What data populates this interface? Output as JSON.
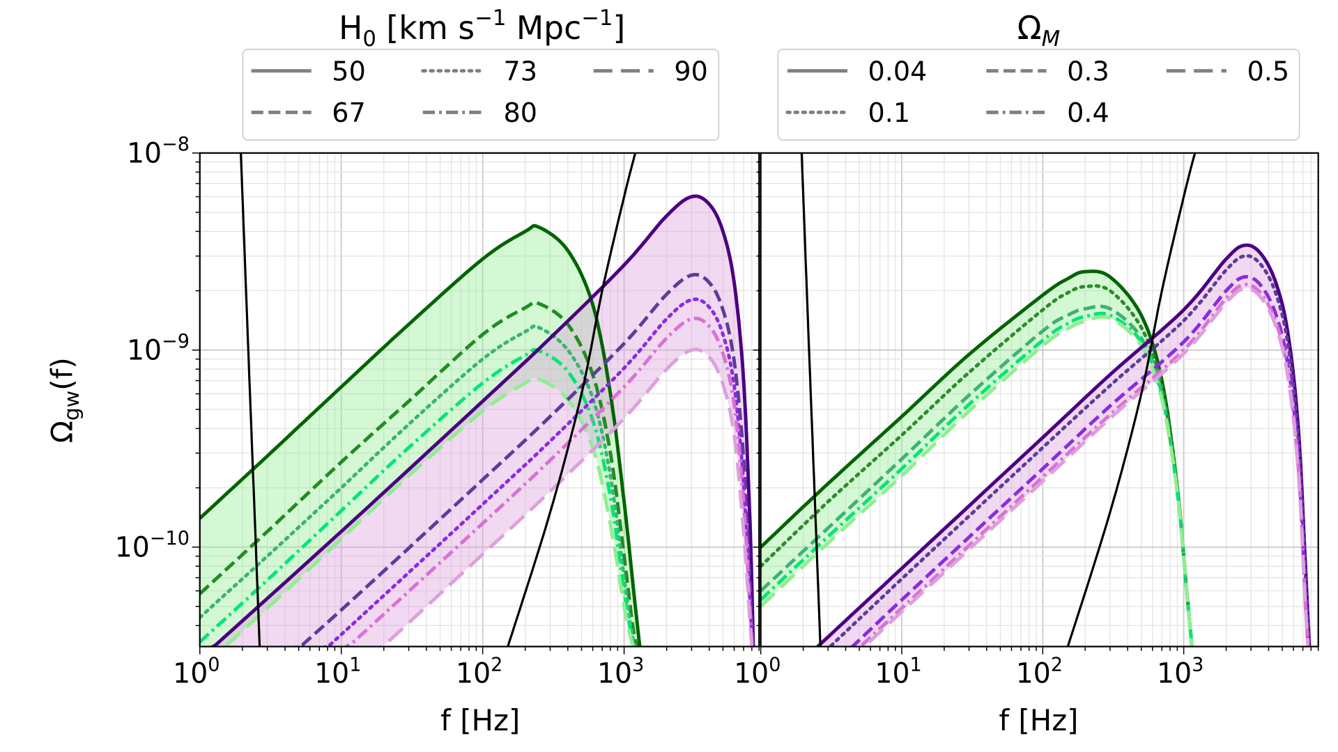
{
  "chart_data": [
    {
      "type": "line",
      "legend_title": {
        "main": "H",
        "sub": "0",
        "rest1": " [km s",
        "sup1": "−1",
        "rest2": " Mpc",
        "sup2": "−1",
        "rest3": "]"
      },
      "xlabel": "f [Hz]",
      "ylabel": {
        "main": "Ω",
        "sub": "gw",
        "rest": "(f)"
      },
      "xscale": "log",
      "yscale": "log",
      "xlim": [
        1,
        9000
      ],
      "ylim": [
        3.13e-11,
        1e-08
      ],
      "grid": true,
      "legend_placement": "above",
      "xticks": [
        {
          "base": "10",
          "exp": "0",
          "v": 1
        },
        {
          "base": "10",
          "exp": "1",
          "v": 10
        },
        {
          "base": "10",
          "exp": "2",
          "v": 100
        },
        {
          "base": "10",
          "exp": "3",
          "v": 1000
        }
      ],
      "yticks": [
        {
          "base": "10",
          "exp": "−8",
          "v": 1e-08
        },
        {
          "base": "10",
          "exp": "−9",
          "v": 1e-09
        },
        {
          "base": "10",
          "exp": "−10",
          "v": 1e-10
        }
      ],
      "legend": [
        {
          "label": "50",
          "style": "solid"
        },
        {
          "label": "67",
          "style": "dashed"
        },
        {
          "label": "73",
          "style": "dotted"
        },
        {
          "label": "80",
          "style": "dashdot"
        },
        {
          "label": "90",
          "style": "longdash"
        }
      ],
      "fills": [
        {
          "between": [
            "g50",
            "g90"
          ],
          "color": "#90ee90"
        },
        {
          "between": [
            "p50",
            "p90"
          ],
          "color": "#dda0dd"
        }
      ],
      "series": [
        {
          "id": "g50",
          "color": "#006400",
          "style": "solid",
          "f": [
            1,
            3,
            10,
            30,
            100,
            200,
            250,
            400,
            600,
            800,
            1000,
            1200,
            1300
          ],
          "omega": [
            1.4e-10,
            2.9e-10,
            6.5e-10,
            1.35e-09,
            2.9e-09,
            4e-09,
            4.2e-09,
            3.2e-09,
            1.7e-09,
            6e-10,
            1.7e-10,
            5e-11,
            3e-11
          ]
        },
        {
          "id": "g67",
          "color": "#228b22",
          "style": "dashed",
          "f": [
            1,
            3,
            10,
            30,
            100,
            200,
            250,
            400,
            600,
            800,
            1000,
            1150,
            1250
          ],
          "omega": [
            5.8e-11,
            1.2e-10,
            2.7e-10,
            5.5e-10,
            1.2e-09,
            1.64e-09,
            1.72e-09,
            1.35e-09,
            7.5e-10,
            3e-10,
            9e-11,
            4e-11,
            3e-11
          ]
        },
        {
          "id": "g73",
          "color": "#3cb371",
          "style": "dotted",
          "f": [
            1,
            3,
            10,
            30,
            100,
            200,
            250,
            400,
            600,
            800,
            1000,
            1150,
            1250
          ],
          "omega": [
            4.4e-11,
            9e-11,
            2e-10,
            4.2e-10,
            9e-10,
            1.24e-09,
            1.3e-09,
            1e-09,
            5.7e-10,
            2.3e-10,
            7e-11,
            3.5e-11,
            3e-11
          ]
        },
        {
          "id": "g80",
          "color": "#00e676",
          "style": "dashdot",
          "f": [
            1,
            3,
            10,
            30,
            100,
            200,
            250,
            400,
            600,
            800,
            1000,
            1150,
            1250
          ],
          "omega": [
            3.3e-11,
            6.8e-11,
            1.53e-10,
            3.2e-10,
            6.8e-10,
            9.4e-10,
            9.9e-10,
            7.8e-10,
            4.4e-10,
            1.8e-10,
            6e-11,
            3.3e-11,
            3e-11
          ]
        },
        {
          "id": "g90",
          "color": "#90ee90",
          "style": "longdash",
          "f": [
            1,
            3,
            10,
            30,
            100,
            200,
            250,
            400,
            600,
            800,
            1000,
            1150,
            1250
          ],
          "omega": [
            2.4e-11,
            4.9e-11,
            1.1e-10,
            2.3e-10,
            4.9e-10,
            6.8e-10,
            7.1e-10,
            5.6e-10,
            3.2e-10,
            1.3e-10,
            5e-11,
            3.2e-11,
            3e-11
          ]
        },
        {
          "id": "p50",
          "color": "#4b0082",
          "style": "solid",
          "f": [
            1,
            10,
            100,
            300,
            1000,
            2000,
            3000,
            4000,
            5000,
            6000,
            7000,
            7800,
            8200
          ],
          "omega": [
            2.7e-11,
            1.2e-10,
            5.5e-10,
            1.15e-09,
            2.7e-09,
            4.8e-09,
            6e-09,
            5.5e-09,
            4e-09,
            2.2e-09,
            7e-10,
            1.2e-10,
            3e-11
          ]
        },
        {
          "id": "p67",
          "color": "#5e3c99",
          "style": "dashed",
          "f": [
            1,
            10,
            100,
            300,
            1000,
            2000,
            3000,
            4000,
            5000,
            6000,
            7000,
            7800,
            8200
          ],
          "omega": [
            1.1e-11,
            4.8e-11,
            2.2e-10,
            4.6e-10,
            1.08e-09,
            1.92e-09,
            2.4e-09,
            2.2e-09,
            1.6e-09,
            8.8e-10,
            2.8e-10,
            6e-11,
            2.5e-11
          ]
        },
        {
          "id": "p73",
          "color": "#8a2be2",
          "style": "dotted",
          "f": [
            1,
            10,
            100,
            300,
            1000,
            2000,
            3000,
            4000,
            5000,
            6000,
            7000,
            7800,
            8200
          ],
          "omega": [
            8e-12,
            3.6e-11,
            1.65e-10,
            3.45e-10,
            8.1e-10,
            1.44e-09,
            1.8e-09,
            1.65e-09,
            1.2e-09,
            6.6e-10,
            2.1e-10,
            5e-11,
            2.5e-11
          ]
        },
        {
          "id": "p80",
          "color": "#da70d6",
          "style": "dashdot",
          "f": [
            1,
            10,
            100,
            300,
            1000,
            2000,
            3000,
            4000,
            5000,
            6000,
            7000,
            7800,
            8200
          ],
          "omega": [
            6.5e-12,
            2.9e-11,
            1.32e-10,
            2.76e-10,
            6.5e-10,
            1.15e-09,
            1.44e-09,
            1.32e-09,
            9.6e-10,
            5.3e-10,
            1.7e-10,
            4.5e-11,
            2.5e-11
          ]
        },
        {
          "id": "p90",
          "color": "#dda0dd",
          "style": "longdash",
          "f": [
            1,
            10,
            100,
            300,
            1000,
            2000,
            3000,
            4000,
            5000,
            6000,
            7000,
            7800,
            8200
          ],
          "omega": [
            4.5e-12,
            2e-11,
            9.2e-11,
            1.92e-10,
            4.5e-10,
            8e-10,
            1e-09,
            9.2e-10,
            6.7e-10,
            3.7e-10,
            1.2e-10,
            4e-11,
            2.5e-11
          ]
        },
        {
          "id": "k1",
          "color": "#000000",
          "style": "thin",
          "f": [
            1.95,
            2.2,
            2.4,
            2.65
          ],
          "omega": [
            1e-08,
            1e-09,
            2e-10,
            3.1e-11
          ]
        },
        {
          "id": "k2",
          "color": "#000000",
          "style": "thin",
          "f": [
            150,
            300,
            500,
            700,
            1000,
            1200
          ],
          "omega": [
            3.1e-11,
            1.5e-10,
            6e-10,
            2e-09,
            6e-09,
            1e-08
          ]
        }
      ]
    },
    {
      "type": "line",
      "legend_title": {
        "main": "Ω",
        "sub": "M"
      },
      "xlabel": "f [Hz]",
      "xscale": "log",
      "yscale": "log",
      "xlim": [
        1,
        9000
      ],
      "ylim": [
        3.13e-11,
        1e-08
      ],
      "grid": true,
      "legend_placement": "above",
      "xticks": [
        {
          "base": "10",
          "exp": "0",
          "v": 1
        },
        {
          "base": "10",
          "exp": "1",
          "v": 10
        },
        {
          "base": "10",
          "exp": "2",
          "v": 100
        },
        {
          "base": "10",
          "exp": "3",
          "v": 1000
        }
      ],
      "legend": [
        {
          "label": "0.04",
          "style": "solid"
        },
        {
          "label": "0.1",
          "style": "dotted"
        },
        {
          "label": "0.3",
          "style": "dashed"
        },
        {
          "label": "0.4",
          "style": "dashdot"
        },
        {
          "label": "0.5",
          "style": "longdash"
        }
      ],
      "fills": [
        {
          "between": [
            "g04",
            "g5"
          ],
          "color": "#90ee90"
        },
        {
          "between": [
            "p04",
            "p5"
          ],
          "color": "#dda0dd"
        }
      ],
      "series": [
        {
          "id": "g04",
          "color": "#006400",
          "style": "solid",
          "f": [
            1,
            3,
            10,
            30,
            100,
            150,
            200,
            300,
            500,
            700,
            900,
            1050,
            1150
          ],
          "omega": [
            1e-10,
            2.1e-10,
            4.6e-10,
            9.5e-10,
            1.9e-09,
            2.3e-09,
            2.5e-09,
            2.35e-09,
            1.5e-09,
            7e-10,
            2e-10,
            6e-11,
            3e-11
          ]
        },
        {
          "id": "g1",
          "color": "#2e8b2e",
          "style": "dotted",
          "f": [
            1,
            3,
            10,
            30,
            100,
            150,
            200,
            300,
            500,
            700,
            900,
            1050,
            1150
          ],
          "omega": [
            8e-11,
            1.7e-10,
            3.7e-10,
            7.7e-10,
            1.6e-09,
            1.95e-09,
            2.1e-09,
            2e-09,
            1.3e-09,
            6.5e-10,
            2e-10,
            6e-11,
            3e-11
          ]
        },
        {
          "id": "g3",
          "color": "#3cb371",
          "style": "dashed",
          "f": [
            1,
            3,
            10,
            30,
            100,
            150,
            200,
            300,
            500,
            700,
            900,
            1050,
            1150
          ],
          "omega": [
            6e-11,
            1.25e-10,
            2.8e-10,
            5.9e-10,
            1.25e-09,
            1.5e-09,
            1.62e-09,
            1.62e-09,
            1.15e-09,
            6e-10,
            1.9e-10,
            6e-11,
            3e-11
          ]
        },
        {
          "id": "g4",
          "color": "#00e676",
          "style": "dashdot",
          "f": [
            1,
            3,
            10,
            30,
            100,
            150,
            200,
            300,
            500,
            700,
            900,
            1050,
            1150
          ],
          "omega": [
            5.4e-11,
            1.13e-10,
            2.5e-10,
            5.3e-10,
            1.12e-09,
            1.36e-09,
            1.48e-09,
            1.5e-09,
            1.1e-09,
            5.8e-10,
            1.9e-10,
            6e-11,
            3e-11
          ]
        },
        {
          "id": "g5",
          "color": "#90ee90",
          "style": "longdash",
          "f": [
            1,
            3,
            10,
            30,
            100,
            150,
            200,
            300,
            500,
            700,
            900,
            1050,
            1150
          ],
          "omega": [
            5e-11,
            1.05e-10,
            2.3e-10,
            4.9e-10,
            1.05e-09,
            1.28e-09,
            1.4e-09,
            1.45e-09,
            1.05e-09,
            5.6e-10,
            1.9e-10,
            6e-11,
            3e-11
          ]
        },
        {
          "id": "p04",
          "color": "#4b0082",
          "style": "solid",
          "f": [
            2.5,
            10,
            100,
            300,
            1000,
            2000,
            2700,
            3500,
            4500,
            5500,
            6500,
            7300,
            7800
          ],
          "omega": [
            3.1e-11,
            7.8e-11,
            3.6e-10,
            7.5e-10,
            1.6e-09,
            2.9e-09,
            3.4e-09,
            3.1e-09,
            2.2e-09,
            1.2e-09,
            4e-10,
            8e-11,
            3e-11
          ]
        },
        {
          "id": "p1",
          "color": "#5e3c99",
          "style": "dotted",
          "f": [
            2.5,
            10,
            100,
            300,
            1000,
            2000,
            2700,
            3500,
            4500,
            5500,
            6500,
            7300,
            7800
          ],
          "omega": [
            2.7e-11,
            6.9e-11,
            3.2e-10,
            6.6e-10,
            1.41e-09,
            2.55e-09,
            3e-09,
            2.73e-09,
            1.94e-09,
            1.06e-09,
            3.5e-10,
            7e-11,
            2.8e-11
          ]
        },
        {
          "id": "p3",
          "color": "#8a2be2",
          "style": "dashed",
          "f": [
            2.5,
            10,
            100,
            300,
            1000,
            2000,
            2700,
            3500,
            4500,
            5500,
            6500,
            7300,
            7800
          ],
          "omega": [
            2.1e-11,
            5.4e-11,
            2.5e-10,
            5.2e-10,
            1.1e-09,
            2e-09,
            2.35e-09,
            2.14e-09,
            1.52e-09,
            8.3e-10,
            2.8e-10,
            5.5e-11,
            2.5e-11
          ]
        },
        {
          "id": "p4",
          "color": "#da70d6",
          "style": "dashdot",
          "f": [
            2.5,
            10,
            100,
            300,
            1000,
            2000,
            2700,
            3500,
            4500,
            5500,
            6500,
            7300,
            7800
          ],
          "omega": [
            1.95e-11,
            4.9e-11,
            2.27e-10,
            4.7e-10,
            1e-09,
            1.83e-09,
            2.15e-09,
            1.95e-09,
            1.39e-09,
            7.6e-10,
            2.5e-10,
            5e-11,
            2.5e-11
          ]
        },
        {
          "id": "p5",
          "color": "#dda0dd",
          "style": "longdash",
          "f": [
            2.5,
            10,
            100,
            300,
            1000,
            2000,
            2700,
            3500,
            4500,
            5500,
            6500,
            7300,
            7800
          ],
          "omega": [
            1.86e-11,
            4.7e-11,
            2.16e-10,
            4.5e-10,
            9.6e-10,
            1.74e-09,
            2.05e-09,
            1.86e-09,
            1.32e-09,
            7.2e-10,
            2.4e-10,
            5e-11,
            2.5e-11
          ]
        },
        {
          "id": "k1",
          "color": "#000000",
          "style": "thin",
          "f": [
            1.95,
            2.2,
            2.4,
            2.65
          ],
          "omega": [
            1e-08,
            1e-09,
            2e-10,
            3.1e-11
          ]
        },
        {
          "id": "k2",
          "color": "#000000",
          "style": "thin",
          "f": [
            150,
            300,
            500,
            700,
            1000,
            1200
          ],
          "omega": [
            3.1e-11,
            1.5e-10,
            6e-10,
            2e-09,
            6e-09,
            1e-08
          ]
        }
      ]
    }
  ],
  "legend_handle_color": "#808080"
}
